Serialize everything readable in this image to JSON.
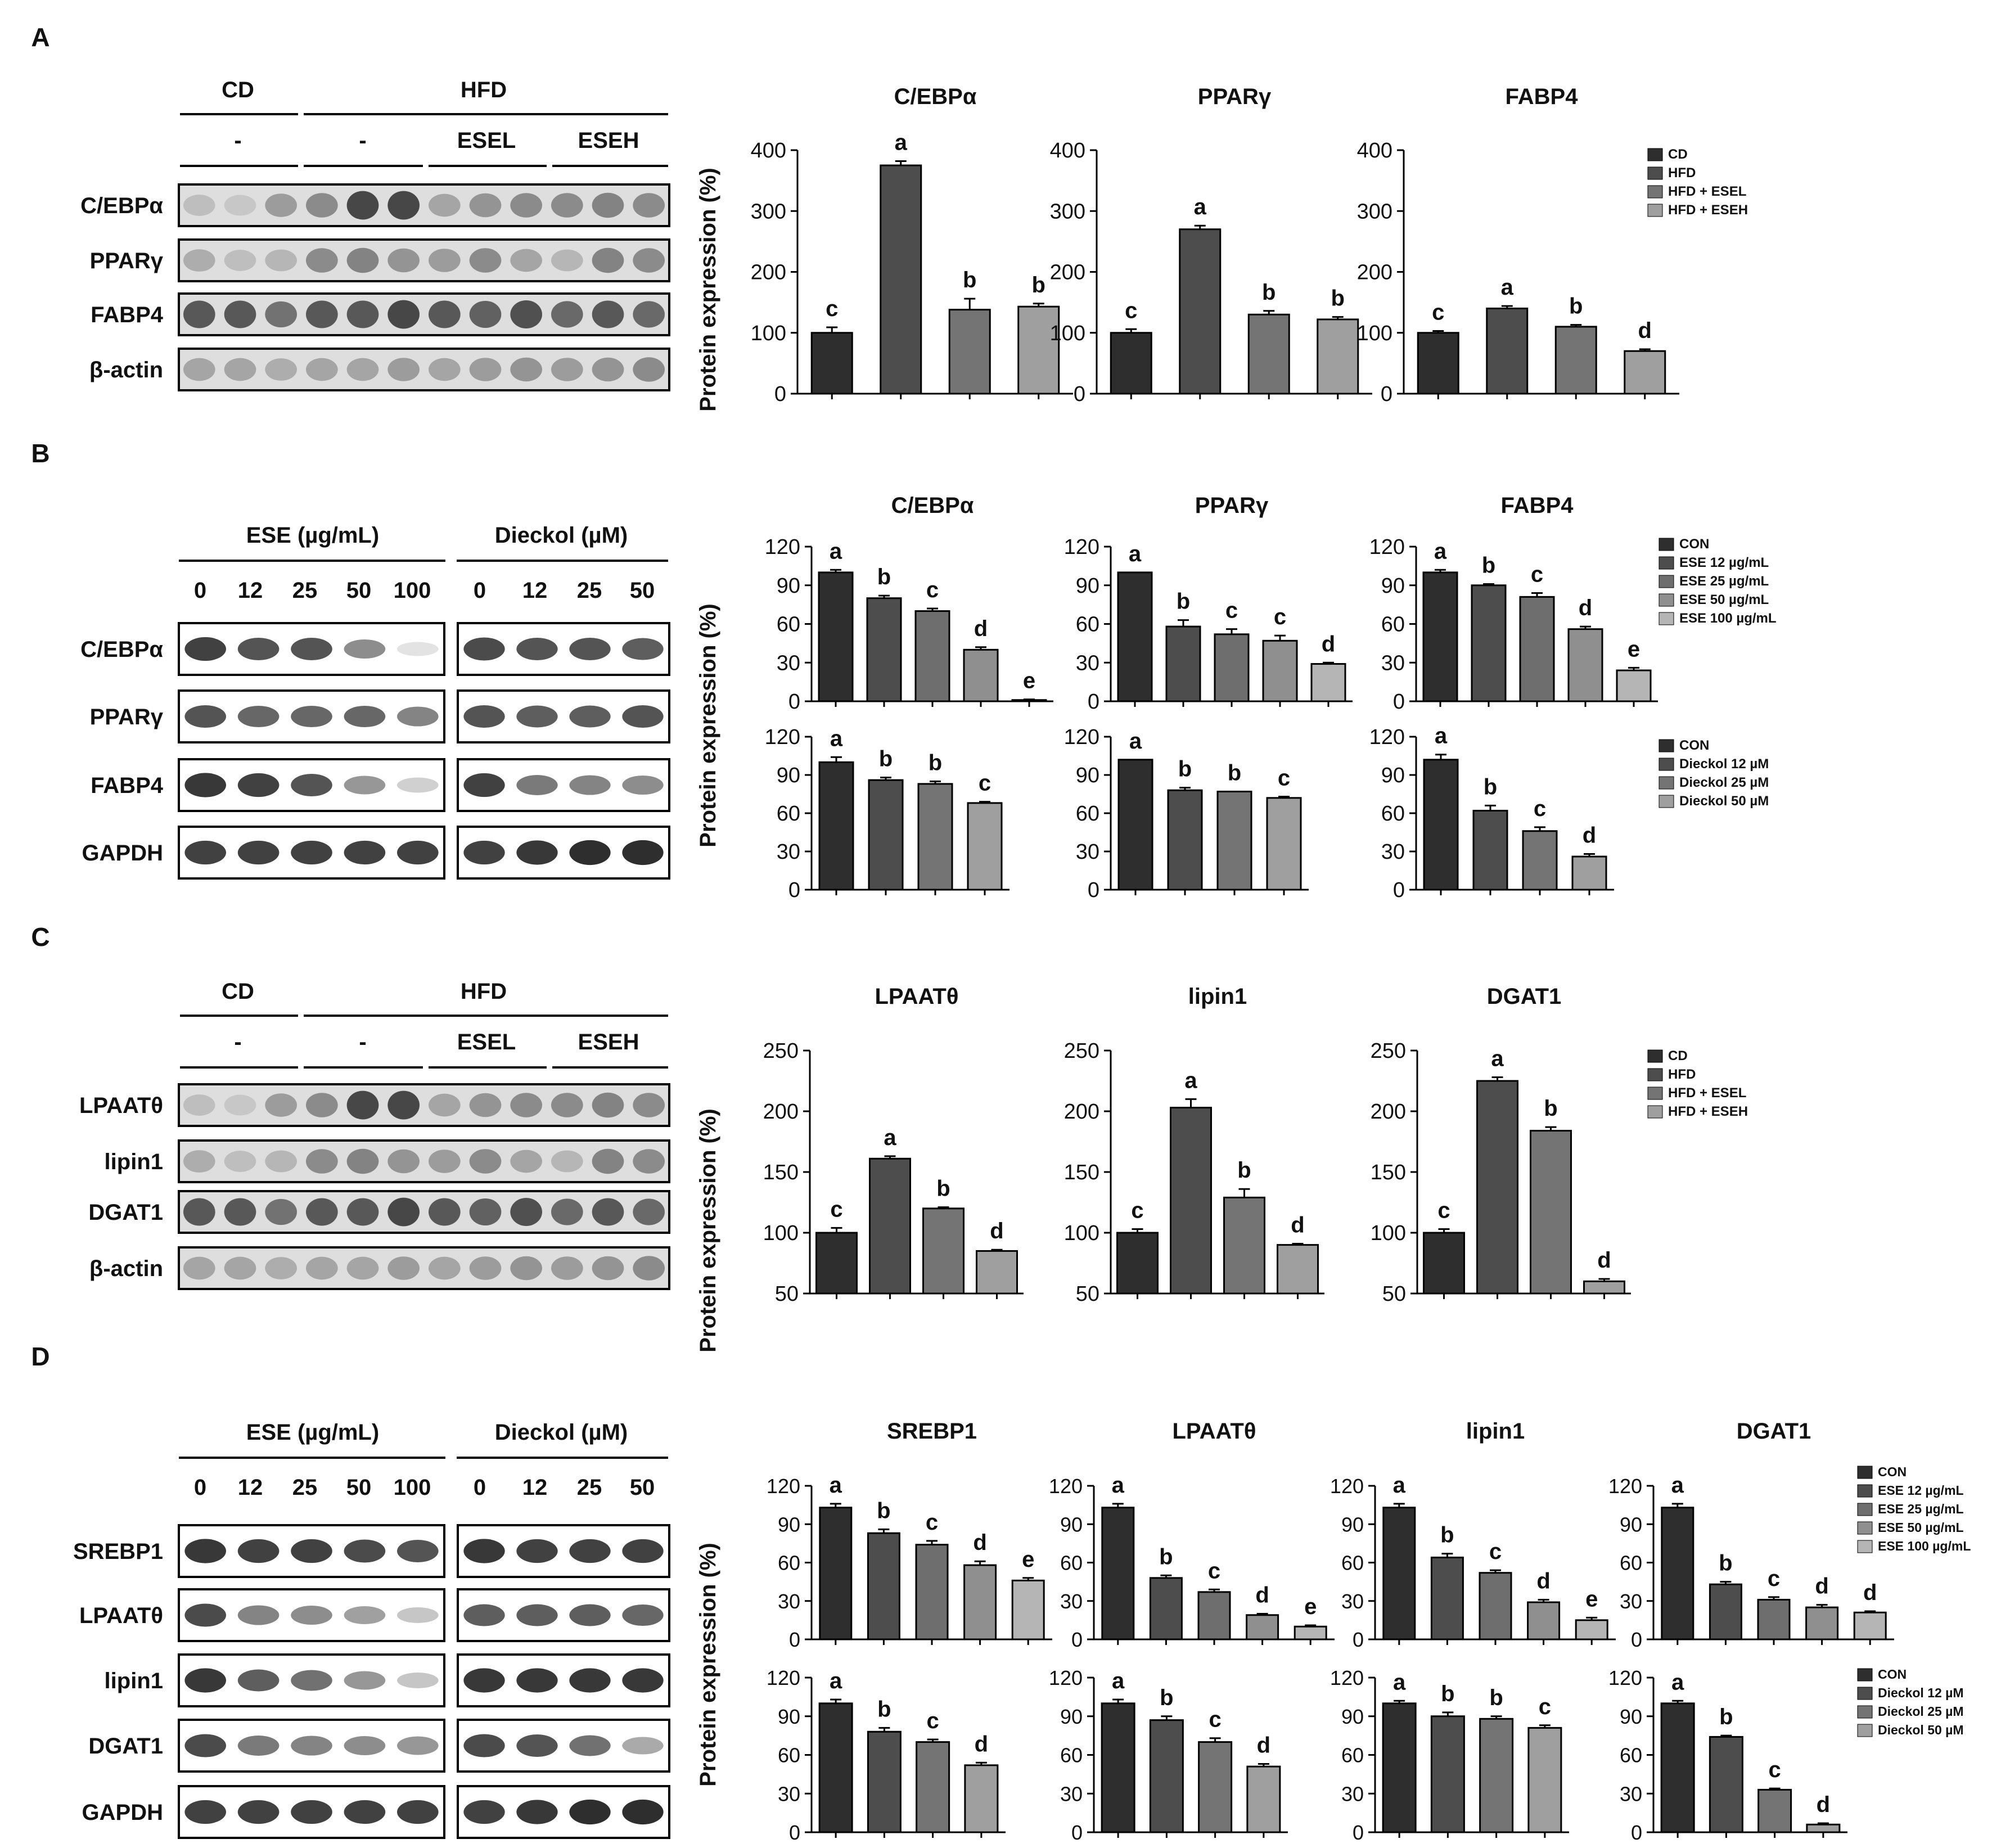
{
  "panels": {
    "A": {
      "label": "A",
      "blot": {
        "groups": [
          "CD",
          "HFD"
        ],
        "treatments": [
          "-",
          "-",
          "ESEL",
          "ESEH"
        ],
        "rows": [
          "C/EBPα",
          "PPARγ",
          "FABP4",
          "β-actin"
        ]
      },
      "charts": [
        {
          "title": "C/EBPα",
          "values": [
            100,
            375,
            138,
            143
          ],
          "errors": [
            9,
            7,
            18,
            5
          ],
          "letters": [
            "c",
            "a",
            "b",
            "b"
          ]
        },
        {
          "title": "PPARγ",
          "values": [
            100,
            270,
            130,
            122
          ],
          "errors": [
            6,
            6,
            6,
            4
          ],
          "letters": [
            "c",
            "a",
            "b",
            "b"
          ]
        },
        {
          "title": "FABP4",
          "values": [
            100,
            140,
            110,
            70
          ],
          "errors": [
            3,
            4,
            3,
            3
          ],
          "letters": [
            "c",
            "a",
            "b",
            "d"
          ]
        }
      ],
      "ylabel": "Protein expression (%)",
      "ylim": [
        0,
        400
      ],
      "yticks": [
        "0",
        "100",
        "200",
        "300",
        "400"
      ],
      "legend": [
        "CD",
        "HFD",
        "HFD + ESEL",
        "HFD + ESEH"
      ]
    },
    "B": {
      "label": "B",
      "blot": {
        "ese_header": "ESE (µg/mL)",
        "dieckol_header": "Dieckol (µM)",
        "ese_doses": [
          "0",
          "12",
          "25",
          "50",
          "100"
        ],
        "dieckol_doses": [
          "0",
          "12",
          "25",
          "50"
        ],
        "rows": [
          "C/EBPα",
          "PPARγ",
          "FABP4",
          "GAPDH"
        ]
      },
      "ylabel": "Protein expression (%)",
      "yticks": [
        "0",
        "30",
        "60",
        "90",
        "120"
      ],
      "ylim": [
        0,
        120
      ],
      "top_charts": [
        {
          "title": "C/EBPα",
          "values": [
            100,
            80,
            70,
            40,
            1
          ],
          "errors": [
            2,
            2,
            2,
            2,
            0.5
          ],
          "letters": [
            "a",
            "b",
            "c",
            "d",
            "e"
          ]
        },
        {
          "title": "PPARγ",
          "values": [
            100,
            58,
            52,
            47,
            29
          ],
          "errors": [
            0,
            5,
            4,
            4,
            1
          ],
          "letters": [
            "a",
            "b",
            "c",
            "c",
            "d"
          ]
        },
        {
          "title": "FABP4",
          "values": [
            100,
            90,
            81,
            56,
            24
          ],
          "errors": [
            2,
            1,
            3,
            2,
            2
          ],
          "letters": [
            "a",
            "b",
            "c",
            "d",
            "e"
          ]
        }
      ],
      "bottom_charts": [
        {
          "values": [
            100,
            86,
            83,
            68
          ],
          "errors": [
            4,
            2,
            2,
            1
          ],
          "letters": [
            "a",
            "b",
            "b",
            "c"
          ]
        },
        {
          "values": [
            102,
            78,
            77,
            72
          ],
          "errors": [
            0,
            2,
            0,
            1
          ],
          "letters": [
            "a",
            "b",
            "b",
            "c"
          ]
        },
        {
          "values": [
            102,
            62,
            46,
            26
          ],
          "errors": [
            4,
            4,
            3,
            2
          ],
          "letters": [
            "a",
            "b",
            "c",
            "d"
          ]
        }
      ],
      "legend_top": [
        "CON",
        "ESE 12 µg/mL",
        "ESE 25 µg/mL",
        "ESE 50 µg/mL",
        "ESE 100 µg/mL"
      ],
      "legend_bottom": [
        "CON",
        "Dieckol 12 µM",
        "Dieckol 25 µM",
        "Dieckol 50 µM"
      ]
    },
    "C": {
      "label": "C",
      "blot": {
        "groups": [
          "CD",
          "HFD"
        ],
        "treatments": [
          "-",
          "-",
          "ESEL",
          "ESEH"
        ],
        "rows": [
          "LPAATθ",
          "lipin1",
          "DGAT1",
          "β-actin"
        ]
      },
      "charts": [
        {
          "title": "LPAATθ",
          "values": [
            100,
            161,
            120,
            85
          ],
          "errors": [
            4,
            2,
            1,
            1
          ],
          "letters": [
            "c",
            "a",
            "b",
            "d"
          ]
        },
        {
          "title": "lipin1",
          "values": [
            100,
            203,
            129,
            90
          ],
          "errors": [
            3,
            7,
            7,
            1
          ],
          "letters": [
            "c",
            "a",
            "b",
            "d"
          ]
        },
        {
          "title": "DGAT1",
          "values": [
            100,
            225,
            184,
            60
          ],
          "errors": [
            3,
            3,
            3,
            2
          ],
          "letters": [
            "c",
            "a",
            "b",
            "d"
          ]
        }
      ],
      "ylabel": "Protein expression (%)",
      "ylim": [
        50,
        250
      ],
      "yticks": [
        "50",
        "100",
        "150",
        "200",
        "250"
      ],
      "legend": [
        "CD",
        "HFD",
        "HFD + ESEL",
        "HFD + ESEH"
      ]
    },
    "D": {
      "label": "D",
      "blot": {
        "ese_header": "ESE (µg/mL)",
        "dieckol_header": "Dieckol (µM)",
        "ese_doses": [
          "0",
          "12",
          "25",
          "50",
          "100"
        ],
        "dieckol_doses": [
          "0",
          "12",
          "25",
          "50"
        ],
        "rows": [
          "SREBP1",
          "LPAATθ",
          "lipin1",
          "DGAT1",
          "GAPDH"
        ]
      },
      "ylabel": "Protein expression (%)",
      "yticks": [
        "0",
        "30",
        "60",
        "90",
        "120"
      ],
      "ylim": [
        0,
        120
      ],
      "top_charts": [
        {
          "title": "SREBP1",
          "values": [
            103,
            83,
            74,
            58,
            46
          ],
          "errors": [
            3,
            3,
            3,
            3,
            2
          ],
          "letters": [
            "a",
            "b",
            "c",
            "d",
            "e"
          ]
        },
        {
          "title": "LPAATθ",
          "values": [
            103,
            48,
            37,
            19,
            10
          ],
          "errors": [
            3,
            2,
            2,
            1,
            1
          ],
          "letters": [
            "a",
            "b",
            "c",
            "d",
            "e"
          ]
        },
        {
          "title": "lipin1",
          "values": [
            103,
            64,
            52,
            29,
            15
          ],
          "errors": [
            3,
            3,
            2,
            2,
            2
          ],
          "letters": [
            "a",
            "b",
            "c",
            "d",
            "e"
          ]
        },
        {
          "title": "DGAT1",
          "values": [
            103,
            43,
            31,
            25,
            21
          ],
          "errors": [
            3,
            2,
            2,
            2,
            1
          ],
          "letters": [
            "a",
            "b",
            "c",
            "d",
            "d"
          ]
        }
      ],
      "bottom_charts": [
        {
          "values": [
            100,
            78,
            70,
            52
          ],
          "errors": [
            3,
            3,
            2,
            2
          ],
          "letters": [
            "a",
            "b",
            "c",
            "d"
          ]
        },
        {
          "values": [
            100,
            87,
            70,
            51
          ],
          "errors": [
            3,
            3,
            3,
            2
          ],
          "letters": [
            "a",
            "b",
            "c",
            "d"
          ]
        },
        {
          "values": [
            100,
            90,
            88,
            81
          ],
          "errors": [
            2,
            3,
            2,
            2
          ],
          "letters": [
            "a",
            "b",
            "b",
            "c"
          ]
        },
        {
          "values": [
            100,
            74,
            33,
            6
          ],
          "errors": [
            2,
            1,
            1,
            1
          ],
          "letters": [
            "a",
            "b",
            "c",
            "d"
          ]
        }
      ],
      "legend_top": [
        "CON",
        "ESE 12 µg/mL",
        "ESE 25 µg/mL",
        "ESE 50 µg/mL",
        "ESE 100 µg/mL"
      ],
      "legend_bottom": [
        "CON",
        "Dieckol 12 µM",
        "Dieckol 25 µM",
        "Dieckol 50 µM"
      ]
    }
  },
  "colors": {
    "bars4": [
      "#2e2e2e",
      "#4d4d4d",
      "#747474",
      "#9f9f9f"
    ],
    "bars5": [
      "#2e2e2e",
      "#4d4d4d",
      "#6e6e6e",
      "#8f8f8f",
      "#b5b5b5"
    ]
  },
  "chart_data": [
    {
      "type": "bar",
      "title": "C/EBPα",
      "categories": [
        "CD",
        "HFD",
        "HFD + ESEL",
        "HFD + ESEH"
      ],
      "values": [
        100,
        375,
        138,
        143
      ],
      "ylabel": "Protein expression (%)",
      "ylim": [
        0,
        400
      ]
    },
    {
      "type": "bar",
      "title": "PPARγ",
      "categories": [
        "CD",
        "HFD",
        "HFD + ESEL",
        "HFD + ESEH"
      ],
      "values": [
        100,
        270,
        130,
        122
      ],
      "ylim": [
        0,
        400
      ]
    },
    {
      "type": "bar",
      "title": "FABP4",
      "categories": [
        "CD",
        "HFD",
        "HFD + ESEL",
        "HFD + ESEH"
      ],
      "values": [
        100,
        140,
        110,
        70
      ],
      "ylim": [
        0,
        400
      ]
    },
    {
      "type": "bar",
      "title": "C/EBPα",
      "categories": [
        "CON",
        "ESE 12 µg/mL",
        "ESE 25 µg/mL",
        "ESE 50 µg/mL",
        "ESE 100 µg/mL"
      ],
      "values": [
        100,
        80,
        70,
        40,
        1
      ],
      "ylim": [
        0,
        120
      ]
    },
    {
      "type": "bar",
      "title": "PPARγ",
      "categories": [
        "CON",
        "ESE 12 µg/mL",
        "ESE 25 µg/mL",
        "ESE 50 µg/mL",
        "ESE 100 µg/mL"
      ],
      "values": [
        100,
        58,
        52,
        47,
        29
      ],
      "ylim": [
        0,
        120
      ]
    },
    {
      "type": "bar",
      "title": "FABP4",
      "categories": [
        "CON",
        "ESE 12 µg/mL",
        "ESE 25 µg/mL",
        "ESE 50 µg/mL",
        "ESE 100 µg/mL"
      ],
      "values": [
        100,
        90,
        81,
        56,
        24
      ],
      "ylim": [
        0,
        120
      ]
    },
    {
      "type": "bar",
      "categories": [
        "CON",
        "Dieckol 12 µM",
        "Dieckol 25 µM",
        "Dieckol 50 µM"
      ],
      "values": [
        100,
        86,
        83,
        68
      ],
      "ylim": [
        0,
        120
      ]
    },
    {
      "type": "bar",
      "categories": [
        "CON",
        "Dieckol 12 µM",
        "Dieckol 25 µM",
        "Dieckol 50 µM"
      ],
      "values": [
        102,
        78,
        77,
        72
      ],
      "ylim": [
        0,
        120
      ]
    },
    {
      "type": "bar",
      "categories": [
        "CON",
        "Dieckol 12 µM",
        "Dieckol 25 µM",
        "Dieckol 50 µM"
      ],
      "values": [
        102,
        62,
        46,
        26
      ],
      "ylim": [
        0,
        120
      ]
    },
    {
      "type": "bar",
      "title": "LPAATθ",
      "categories": [
        "CD",
        "HFD",
        "HFD + ESEL",
        "HFD + ESEH"
      ],
      "values": [
        100,
        161,
        120,
        85
      ],
      "ylim": [
        50,
        250
      ]
    },
    {
      "type": "bar",
      "title": "lipin1",
      "categories": [
        "CD",
        "HFD",
        "HFD + ESEL",
        "HFD + ESEH"
      ],
      "values": [
        100,
        203,
        129,
        90
      ],
      "ylim": [
        50,
        250
      ]
    },
    {
      "type": "bar",
      "title": "DGAT1",
      "categories": [
        "CD",
        "HFD",
        "HFD + ESEL",
        "HFD + ESEH"
      ],
      "values": [
        100,
        225,
        184,
        60
      ],
      "ylim": [
        50,
        250
      ]
    },
    {
      "type": "bar",
      "title": "SREBP1",
      "categories": [
        "CON",
        "ESE 12 µg/mL",
        "ESE 25 µg/mL",
        "ESE 50 µg/mL",
        "ESE 100 µg/mL"
      ],
      "values": [
        103,
        83,
        74,
        58,
        46
      ],
      "ylim": [
        0,
        120
      ]
    },
    {
      "type": "bar",
      "title": "LPAATθ",
      "categories": [
        "CON",
        "ESE 12 µg/mL",
        "ESE 25 µg/mL",
        "ESE 50 µg/mL",
        "ESE 100 µg/mL"
      ],
      "values": [
        103,
        48,
        37,
        19,
        10
      ],
      "ylim": [
        0,
        120
      ]
    },
    {
      "type": "bar",
      "title": "lipin1",
      "categories": [
        "CON",
        "ESE 12 µg/mL",
        "ESE 25 µg/mL",
        "ESE 50 µg/mL",
        "ESE 100 µg/mL"
      ],
      "values": [
        103,
        64,
        52,
        29,
        15
      ],
      "ylim": [
        0,
        120
      ]
    },
    {
      "type": "bar",
      "title": "DGAT1",
      "categories": [
        "CON",
        "ESE 12 µg/mL",
        "ESE 25 µg/mL",
        "ESE 50 µg/mL",
        "ESE 100 µg/mL"
      ],
      "values": [
        103,
        43,
        31,
        25,
        21
      ],
      "ylim": [
        0,
        120
      ]
    },
    {
      "type": "bar",
      "categories": [
        "CON",
        "Dieckol 12 µM",
        "Dieckol 25 µM",
        "Dieckol 50 µM"
      ],
      "values": [
        100,
        78,
        70,
        52
      ],
      "ylim": [
        0,
        120
      ]
    },
    {
      "type": "bar",
      "categories": [
        "CON",
        "Dieckol 12 µM",
        "Dieckol 25 µM",
        "Dieckol 50 µM"
      ],
      "values": [
        100,
        87,
        70,
        51
      ],
      "ylim": [
        0,
        120
      ]
    },
    {
      "type": "bar",
      "categories": [
        "CON",
        "Dieckol 12 µM",
        "Dieckol 25 µM",
        "Dieckol 50 µM"
      ],
      "values": [
        100,
        90,
        88,
        81
      ],
      "ylim": [
        0,
        120
      ]
    },
    {
      "type": "bar",
      "categories": [
        "CON",
        "Dieckol 12 µM",
        "Dieckol 25 µM",
        "Dieckol 50 µM"
      ],
      "values": [
        100,
        74,
        33,
        6
      ],
      "ylim": [
        0,
        120
      ]
    }
  ]
}
